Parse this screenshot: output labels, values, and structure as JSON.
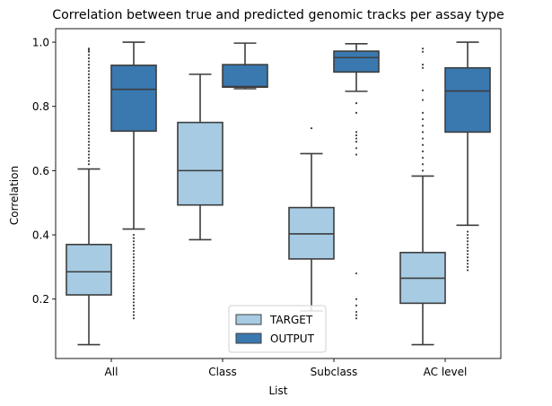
{
  "chart_data": {
    "type": "box",
    "title": "Correlation between true and predicted genomic tracks per assay type",
    "xlabel": "List",
    "ylabel": "Correlation",
    "ylim": [
      0.015,
      1.042
    ],
    "yticks": [
      0.2,
      0.4,
      0.6,
      0.8,
      1.0
    ],
    "ytick_labels": [
      "0.2",
      "0.4",
      "0.6",
      "0.8",
      "1.0"
    ],
    "categories": [
      "All",
      "Class",
      "Subclass",
      "AC level"
    ],
    "legend": {
      "position": "bottom-center"
    },
    "series": [
      {
        "name": "TARGET",
        "color": "#a6cbe3",
        "boxes": [
          {
            "whisker_low": 0.058,
            "q1": 0.213,
            "median": 0.285,
            "q3": 0.37,
            "whisker_high": 0.605,
            "outliers": [
              0.62,
              0.63,
              0.64,
              0.65,
              0.66,
              0.67,
              0.68,
              0.69,
              0.7,
              0.71,
              0.72,
              0.73,
              0.74,
              0.75,
              0.76,
              0.77,
              0.78,
              0.79,
              0.8,
              0.81,
              0.82,
              0.83,
              0.84,
              0.85,
              0.86,
              0.87,
              0.88,
              0.89,
              0.9,
              0.91,
              0.92,
              0.93,
              0.94,
              0.95,
              0.96,
              0.97,
              0.975,
              0.98
            ]
          },
          {
            "whisker_low": 0.385,
            "q1": 0.493,
            "median": 0.6,
            "q3": 0.75,
            "whisker_high": 0.9,
            "outliers": []
          },
          {
            "whisker_low": 0.163,
            "q1": 0.325,
            "median": 0.403,
            "q3": 0.485,
            "whisker_high": 0.653,
            "outliers": [
              0.732
            ]
          },
          {
            "whisker_low": 0.058,
            "q1": 0.187,
            "median": 0.265,
            "q3": 0.345,
            "whisker_high": 0.583,
            "outliers": [
              0.6,
              0.62,
              0.64,
              0.66,
              0.68,
              0.7,
              0.72,
              0.74,
              0.76,
              0.78,
              0.82,
              0.85,
              0.92,
              0.93,
              0.97,
              0.98
            ]
          }
        ]
      },
      {
        "name": "OUTPUT",
        "color": "#3a78b0",
        "boxes": [
          {
            "whisker_low": 0.418,
            "q1": 0.723,
            "median": 0.853,
            "q3": 0.928,
            "whisker_high": 1.0,
            "outliers": [
              0.14,
              0.15,
              0.16,
              0.17,
              0.18,
              0.19,
              0.2,
              0.21,
              0.22,
              0.23,
              0.24,
              0.25,
              0.26,
              0.27,
              0.28,
              0.29,
              0.3,
              0.31,
              0.32,
              0.33,
              0.34,
              0.35,
              0.36,
              0.37,
              0.38,
              0.39,
              0.4
            ]
          },
          {
            "whisker_low": 0.855,
            "q1": 0.86,
            "median": 0.862,
            "q3": 0.93,
            "whisker_high": 0.997,
            "outliers": []
          },
          {
            "whisker_low": 0.847,
            "q1": 0.907,
            "median": 0.952,
            "q3": 0.972,
            "whisker_high": 0.995,
            "outliers": [
              0.65,
              0.67,
              0.69,
              0.7,
              0.71,
              0.72,
              0.78,
              0.81,
              0.28,
              0.2,
              0.18,
              0.16,
              0.15,
              0.14
            ]
          },
          {
            "whisker_low": 0.43,
            "q1": 0.72,
            "median": 0.848,
            "q3": 0.92,
            "whisker_high": 1.0,
            "outliers": [
              0.29,
              0.3,
              0.31,
              0.32,
              0.33,
              0.34,
              0.35,
              0.36,
              0.37,
              0.38,
              0.39,
              0.4,
              0.41
            ]
          }
        ]
      }
    ]
  }
}
